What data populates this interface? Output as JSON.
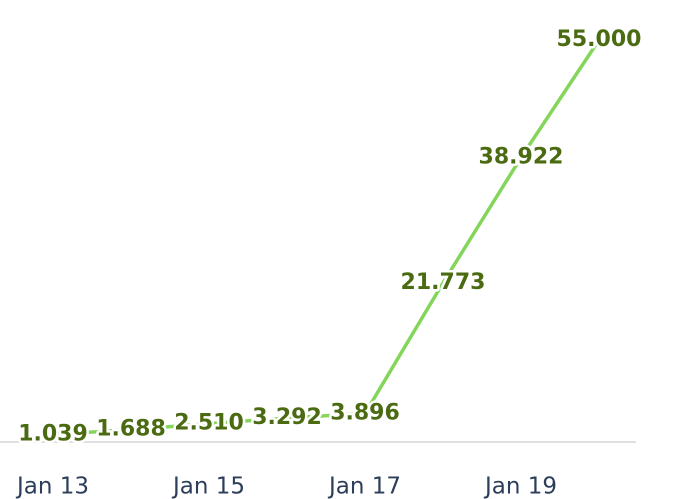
{
  "chart_data": {
    "type": "line",
    "categories": [
      "Jan 13",
      null,
      "Jan 15",
      null,
      "Jan 17",
      null,
      "Jan 19",
      null
    ],
    "series": [
      {
        "color": "#84d65a",
        "values": [
          1.039,
          1.688,
          2.51,
          3.292,
          3.896,
          21.773,
          38.922,
          55
        ],
        "value_labels": [
          "1.039",
          "1.688",
          "2.510",
          "3.292",
          "3.896",
          "21.773",
          "38.922",
          "55.000"
        ]
      }
    ],
    "ylim": [
      0,
      55
    ]
  }
}
